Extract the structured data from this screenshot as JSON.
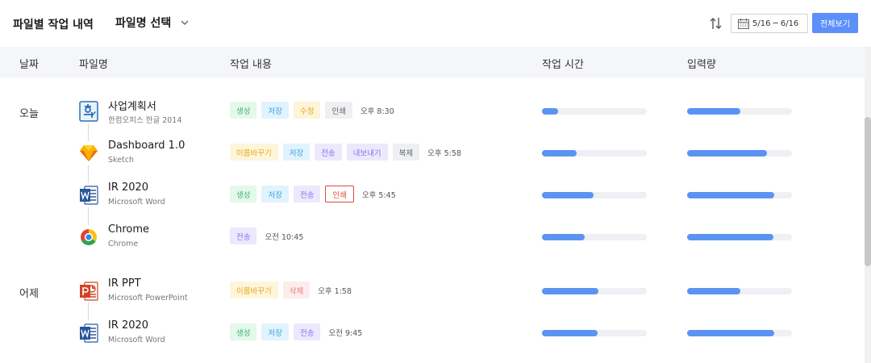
{
  "header": {
    "title": "파일별 작업 내역",
    "file_select_label": "파일명 선택",
    "date_range": "5/16 ─ 6/16",
    "view_all_label": "전체보기"
  },
  "columns": [
    "날짜",
    "파일명",
    "작업 내용",
    "작업 시간",
    "입력량"
  ],
  "groups": [
    {
      "date": "오늘"
    },
    {
      "date": "어제"
    }
  ],
  "rows": [
    {
      "icon": "hancom-hangul-icon",
      "file": "사업계획서",
      "app": "한컴오피스 한글 2014",
      "tags": [
        {
          "label": "생성",
          "kind": "create"
        },
        {
          "label": "저장",
          "kind": "save"
        },
        {
          "label": "수정",
          "kind": "modify"
        },
        {
          "label": "인쇄",
          "kind": "print"
        }
      ],
      "time": "오후 8:30",
      "work_time": 0.15,
      "input_amount": 0.51
    },
    {
      "icon": "sketch-icon",
      "file": "Dashboard 1.0",
      "app": "Sketch",
      "tags": [
        {
          "label": "이름바꾸기",
          "kind": "rename"
        },
        {
          "label": "저장",
          "kind": "save"
        },
        {
          "label": "전송",
          "kind": "send"
        },
        {
          "label": "내보내기",
          "kind": "export"
        },
        {
          "label": "복제",
          "kind": "copy"
        }
      ],
      "time": "오후 5:58",
      "work_time": 0.33,
      "input_amount": 0.76
    },
    {
      "icon": "ms-word-icon",
      "file": "IR 2020",
      "app": "Microsoft Word",
      "tags": [
        {
          "label": "생성",
          "kind": "create"
        },
        {
          "label": "저장",
          "kind": "save"
        },
        {
          "label": "전송",
          "kind": "send"
        },
        {
          "label": "인쇄",
          "kind": "print-outline"
        }
      ],
      "time": "오후 5:45",
      "work_time": 0.49,
      "input_amount": 0.83
    },
    {
      "icon": "chrome-icon",
      "file": "Chrome",
      "app": "Chrome",
      "tags": [
        {
          "label": "전송",
          "kind": "send"
        }
      ],
      "time": "오전 10:45",
      "work_time": 0.41,
      "input_amount": 0.82
    },
    {
      "icon": "ms-powerpoint-icon",
      "file": "IR PPT",
      "app": "Microsoft PowerPoint",
      "tags": [
        {
          "label": "이름바꾸기",
          "kind": "rename"
        },
        {
          "label": "삭제",
          "kind": "delete"
        }
      ],
      "time": "오후 1:58",
      "work_time": 0.54,
      "input_amount": 0.51
    },
    {
      "icon": "ms-word-icon",
      "file": "IR 2020",
      "app": "Microsoft Word",
      "tags": [
        {
          "label": "생성",
          "kind": "create"
        },
        {
          "label": "저장",
          "kind": "save"
        },
        {
          "label": "전송",
          "kind": "send"
        }
      ],
      "time": "오전 9:45",
      "work_time": 0.53,
      "input_amount": 0.83
    }
  ]
}
